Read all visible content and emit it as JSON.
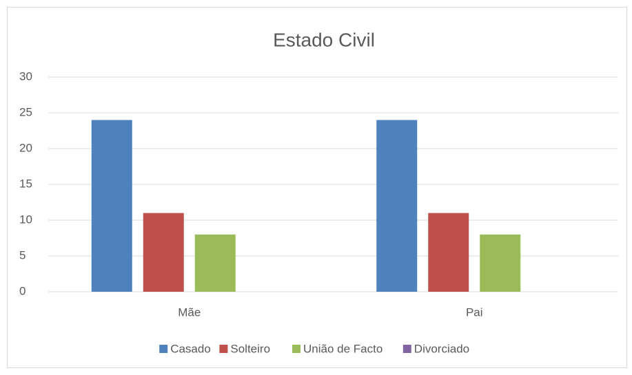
{
  "chart_data": {
    "type": "bar",
    "title": "Estado Civil",
    "categories": [
      "Mãe",
      "Pai"
    ],
    "series": [
      {
        "name": "Casado",
        "color": "#4f81bd",
        "values": [
          24,
          24
        ]
      },
      {
        "name": "Solteiro",
        "color": "#c0504d",
        "values": [
          11,
          11
        ]
      },
      {
        "name": "União de Facto",
        "color": "#9bbb59",
        "values": [
          8,
          8
        ]
      },
      {
        "name": "Divorciado",
        "color": "#8064a2",
        "values": [
          0,
          0
        ]
      }
    ],
    "ylim": [
      0,
      30
    ],
    "yticks": [
      0,
      5,
      10,
      15,
      20,
      25,
      30
    ],
    "grid": true,
    "legend": "bottom"
  }
}
